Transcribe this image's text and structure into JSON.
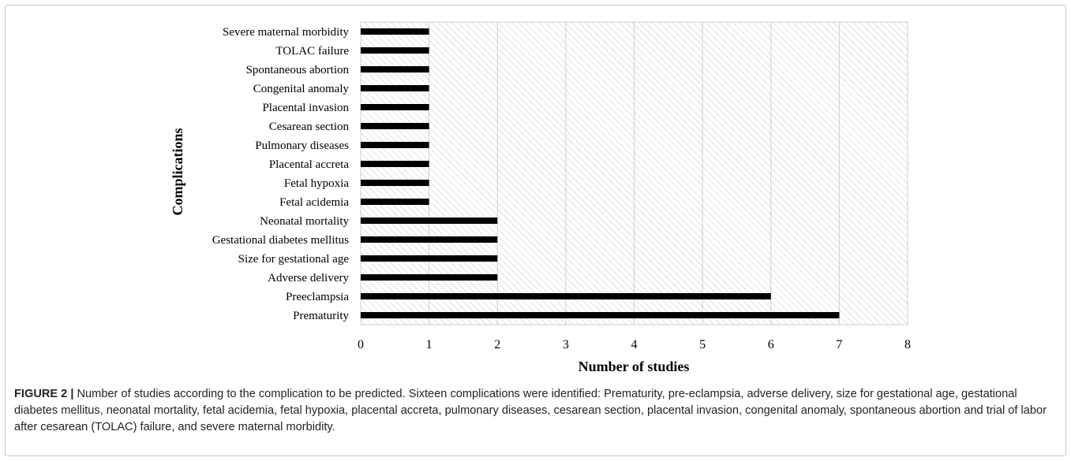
{
  "chart_data": {
    "type": "bar",
    "orientation": "horizontal",
    "categories": [
      "Severe maternal morbidity",
      "TOLAC failure",
      "Spontaneous abortion",
      "Congenital anomaly",
      "Placental invasion",
      "Cesarean section",
      "Pulmonary diseases",
      "Placental accreta",
      "Fetal hypoxia",
      "Fetal acidemia",
      "Neonatal mortality",
      "Gestational diabetes mellitus",
      "Size for gestational age",
      "Adverse delivery",
      "Preeclampsia",
      "Prematurity"
    ],
    "values": [
      1,
      1,
      1,
      1,
      1,
      1,
      1,
      1,
      1,
      1,
      2,
      2,
      2,
      2,
      6,
      7
    ],
    "xlabel": "Number of studies",
    "ylabel": "Complications",
    "xlim": [
      0,
      8
    ],
    "xticks": [
      "0",
      "1",
      "2",
      "3",
      "4",
      "5",
      "6",
      "7",
      "8"
    ],
    "grid": true,
    "plot_background": "hatched",
    "colors": {
      "bar": "#000000",
      "hatch": "#bdbdbd"
    }
  },
  "caption": {
    "label": "FIGURE 2 |",
    "text": " Number of studies according to the complication to be predicted. Sixteen complications were identified: Prematurity, pre-eclampsia, adverse delivery, size for gestational age, gestational diabetes mellitus, neonatal mortality, fetal acidemia, fetal hypoxia, placental accreta, pulmonary diseases, cesarean section, placental invasion, congenital anomaly, spontaneous abortion and trial of labor after cesarean (TOLAC) failure, and severe maternal morbidity."
  }
}
